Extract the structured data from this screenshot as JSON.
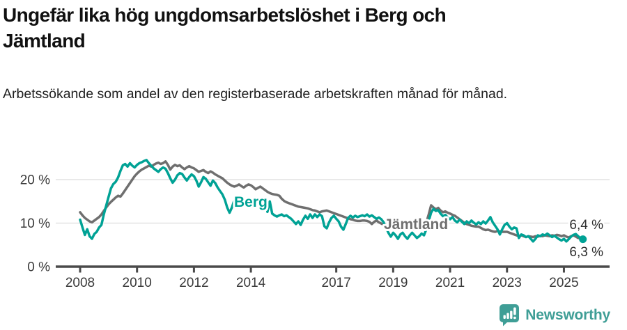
{
  "title": "Ungefär lika hög ungdomsarbetslöshet i Berg och Jämtland",
  "subtitle": "Arbetssökande som andel av den registerbaserade arbetskraften månad för månad.",
  "branding": {
    "name": "Newsworthy",
    "icon": "bar-chart-speech-bubble-icon"
  },
  "colors": {
    "berg_teal": "#00a295",
    "jamtland_gray": "#6f6f6f",
    "gridline": "#e2e2e2",
    "axis": "#4a4a4a",
    "axis_text": "#3a3a3a",
    "end_label_text": "#2e2e2e",
    "brand_teal": "#3f9e96",
    "title_text": "#111111"
  },
  "chart_data": {
    "type": "line",
    "title": "Ungefär lika hög ungdomsarbetslöshet i Berg och Jämtland",
    "subtitle": "Arbetssökande som andel av den registerbaserade arbetskraften månad för månad.",
    "unit": "%",
    "x_start": "2008-01",
    "x_end": "2025-09",
    "x_step": "1 month",
    "grid": "horizontal",
    "legend_position": "inline-labels",
    "ylim": [
      0,
      26
    ],
    "y_ticks": [
      {
        "value": 0,
        "label": "0 %"
      },
      {
        "value": 10,
        "label": "10 %"
      },
      {
        "value": 20,
        "label": "20 %"
      }
    ],
    "x_ticks": [
      {
        "year": 2008,
        "label": "2008"
      },
      {
        "year": 2010,
        "label": "2010"
      },
      {
        "year": 2012,
        "label": "2012"
      },
      {
        "year": 2014,
        "label": "2014"
      },
      {
        "year": 2017,
        "label": "2017"
      },
      {
        "year": 2019,
        "label": "2019"
      },
      {
        "year": 2021,
        "label": "2021"
      },
      {
        "year": 2023,
        "label": "2023"
      },
      {
        "year": 2025,
        "label": "2025"
      }
    ],
    "series": [
      {
        "name": "Jämtland",
        "color": "#6f6f6f",
        "end_label": "6,4 %",
        "end_value": 6.4,
        "values": [
          12.5,
          11.8,
          11.2,
          10.8,
          10.4,
          10.2,
          10.6,
          11.0,
          11.4,
          12.0,
          12.8,
          13.6,
          14.3,
          14.9,
          15.4,
          15.9,
          16.3,
          16.1,
          16.8,
          17.6,
          18.4,
          19.2,
          20.0,
          20.8,
          21.4,
          21.9,
          22.3,
          22.6,
          22.9,
          23.2,
          23.0,
          23.4,
          23.7,
          23.9,
          23.6,
          23.8,
          24.2,
          23.4,
          22.3,
          23.0,
          23.4,
          23.1,
          23.3,
          22.8,
          22.4,
          22.8,
          23.1,
          22.8,
          22.6,
          22.2,
          21.8,
          22.0,
          22.2,
          21.8,
          21.5,
          21.9,
          21.6,
          21.2,
          20.9,
          20.6,
          20.3,
          19.8,
          19.3,
          18.9,
          18.6,
          18.4,
          18.6,
          18.9,
          18.5,
          18.2,
          18.6,
          18.9,
          18.7,
          18.3,
          17.8,
          18.1,
          18.4,
          18.0,
          17.6,
          17.2,
          16.9,
          16.7,
          16.6,
          16.5,
          16.3,
          15.6,
          15.1,
          14.8,
          14.6,
          14.4,
          14.2,
          14.0,
          13.8,
          13.7,
          13.6,
          13.5,
          13.4,
          13.2,
          13.0,
          12.9,
          12.7,
          12.5,
          12.7,
          12.8,
          12.9,
          12.7,
          12.5,
          12.3,
          12.1,
          11.9,
          11.7,
          11.5,
          11.3,
          11.1,
          10.9,
          10.8,
          10.6,
          10.5,
          10.5,
          10.6,
          10.6,
          10.5,
          10.3,
          9.8,
          10.3,
          10.6,
          10.2,
          9.9,
          9.6,
          9.4,
          9.2,
          9.1,
          9.0,
          8.9,
          8.8,
          8.7,
          8.6,
          8.8,
          8.6,
          8.5,
          8.5,
          8.6,
          8.7,
          8.8,
          9.0,
          9.3,
          10.2,
          12.0,
          14.1,
          13.6,
          13.2,
          13.5,
          12.9,
          12.5,
          12.7,
          12.4,
          12.2,
          11.9,
          11.7,
          11.3,
          10.9,
          10.5,
          10.1,
          9.8,
          9.6,
          9.4,
          9.3,
          9.2,
          9.2,
          8.9,
          8.6,
          8.4,
          8.5,
          8.3,
          8.1,
          8.0,
          8.2,
          8.1,
          8.0,
          8.0,
          8.0,
          7.8,
          7.6,
          7.4,
          7.2,
          7.0,
          7.2,
          7.0,
          6.8,
          7.0,
          6.9,
          6.8,
          7.0,
          6.9,
          7.1,
          7.0,
          7.2,
          7.1,
          7.0,
          7.2,
          7.1,
          7.3,
          7.2,
          7.0,
          7.2,
          6.9,
          6.7,
          7.0,
          7.2,
          6.9,
          6.6,
          6.5,
          6.4
        ]
      },
      {
        "name": "Berg",
        "color": "#00a295",
        "end_label": "6,3 %",
        "end_value": 6.3,
        "end_dot": true,
        "values": [
          10.8,
          9.0,
          7.3,
          8.6,
          7.0,
          6.4,
          7.5,
          8.0,
          9.0,
          9.6,
          12.0,
          14.0,
          16.0,
          18.0,
          19.0,
          19.5,
          20.5,
          22.0,
          23.3,
          23.6,
          23.0,
          23.8,
          23.2,
          22.8,
          23.4,
          23.8,
          24.0,
          24.3,
          24.5,
          23.8,
          23.2,
          22.6,
          22.2,
          21.8,
          22.4,
          22.8,
          22.5,
          21.5,
          20.3,
          19.3,
          20.0,
          21.0,
          21.5,
          21.3,
          20.5,
          19.8,
          20.6,
          21.2,
          20.8,
          19.8,
          18.4,
          19.4,
          20.6,
          20.2,
          19.4,
          18.6,
          19.8,
          19.2,
          18.2,
          17.4,
          16.6,
          15.4,
          13.6,
          12.4,
          13.6,
          15.3,
          14.8,
          14.4,
          14.9,
          15.1,
          14.6,
          14.2,
          14.6,
          15.0,
          14.3,
          15.0,
          14.4,
          13.6,
          15.2,
          12.6,
          15.0,
          12.2,
          11.8,
          11.5,
          11.8,
          12.0,
          11.6,
          11.8,
          11.4,
          11.0,
          10.4,
          9.8,
          10.4,
          9.6,
          10.8,
          11.7,
          11.0,
          12.0,
          11.2,
          12.0,
          11.4,
          12.0,
          11.6,
          9.3,
          8.8,
          10.2,
          11.2,
          11.7,
          11.0,
          10.4,
          9.2,
          8.5,
          9.8,
          11.2,
          11.7,
          11.3,
          11.7,
          11.4,
          11.6,
          11.8,
          11.6,
          12.0,
          11.5,
          11.8,
          11.4,
          11.0,
          11.3,
          10.9,
          10.2,
          9.0,
          7.8,
          6.9,
          7.8,
          7.2,
          6.4,
          7.4,
          7.8,
          7.0,
          6.4,
          7.2,
          7.8,
          7.2,
          6.6,
          7.0,
          7.6,
          7.2,
          8.6,
          10.5,
          12.4,
          13.3,
          12.8,
          13.0,
          12.2,
          11.6,
          11.9,
          11.3,
          10.9,
          11.4,
          10.6,
          10.2,
          10.8,
          10.3,
          9.8,
          10.4,
          10.0,
          10.6,
          10.1,
          9.7,
          10.2,
          9.8,
          10.4,
          9.9,
          10.6,
          11.4,
          10.2,
          9.4,
          8.6,
          7.4,
          8.6,
          9.6,
          10.0,
          9.2,
          8.6,
          9.0,
          8.8,
          6.6,
          7.4,
          7.2,
          6.8,
          7.0,
          6.4,
          5.8,
          6.4,
          7.2,
          7.0,
          7.4,
          7.2,
          7.6,
          7.2,
          6.8,
          7.1,
          6.7,
          6.3,
          6.0,
          6.4,
          5.8,
          6.3,
          6.9,
          7.3,
          7.5,
          7.0,
          6.5,
          6.3
        ]
      }
    ]
  }
}
